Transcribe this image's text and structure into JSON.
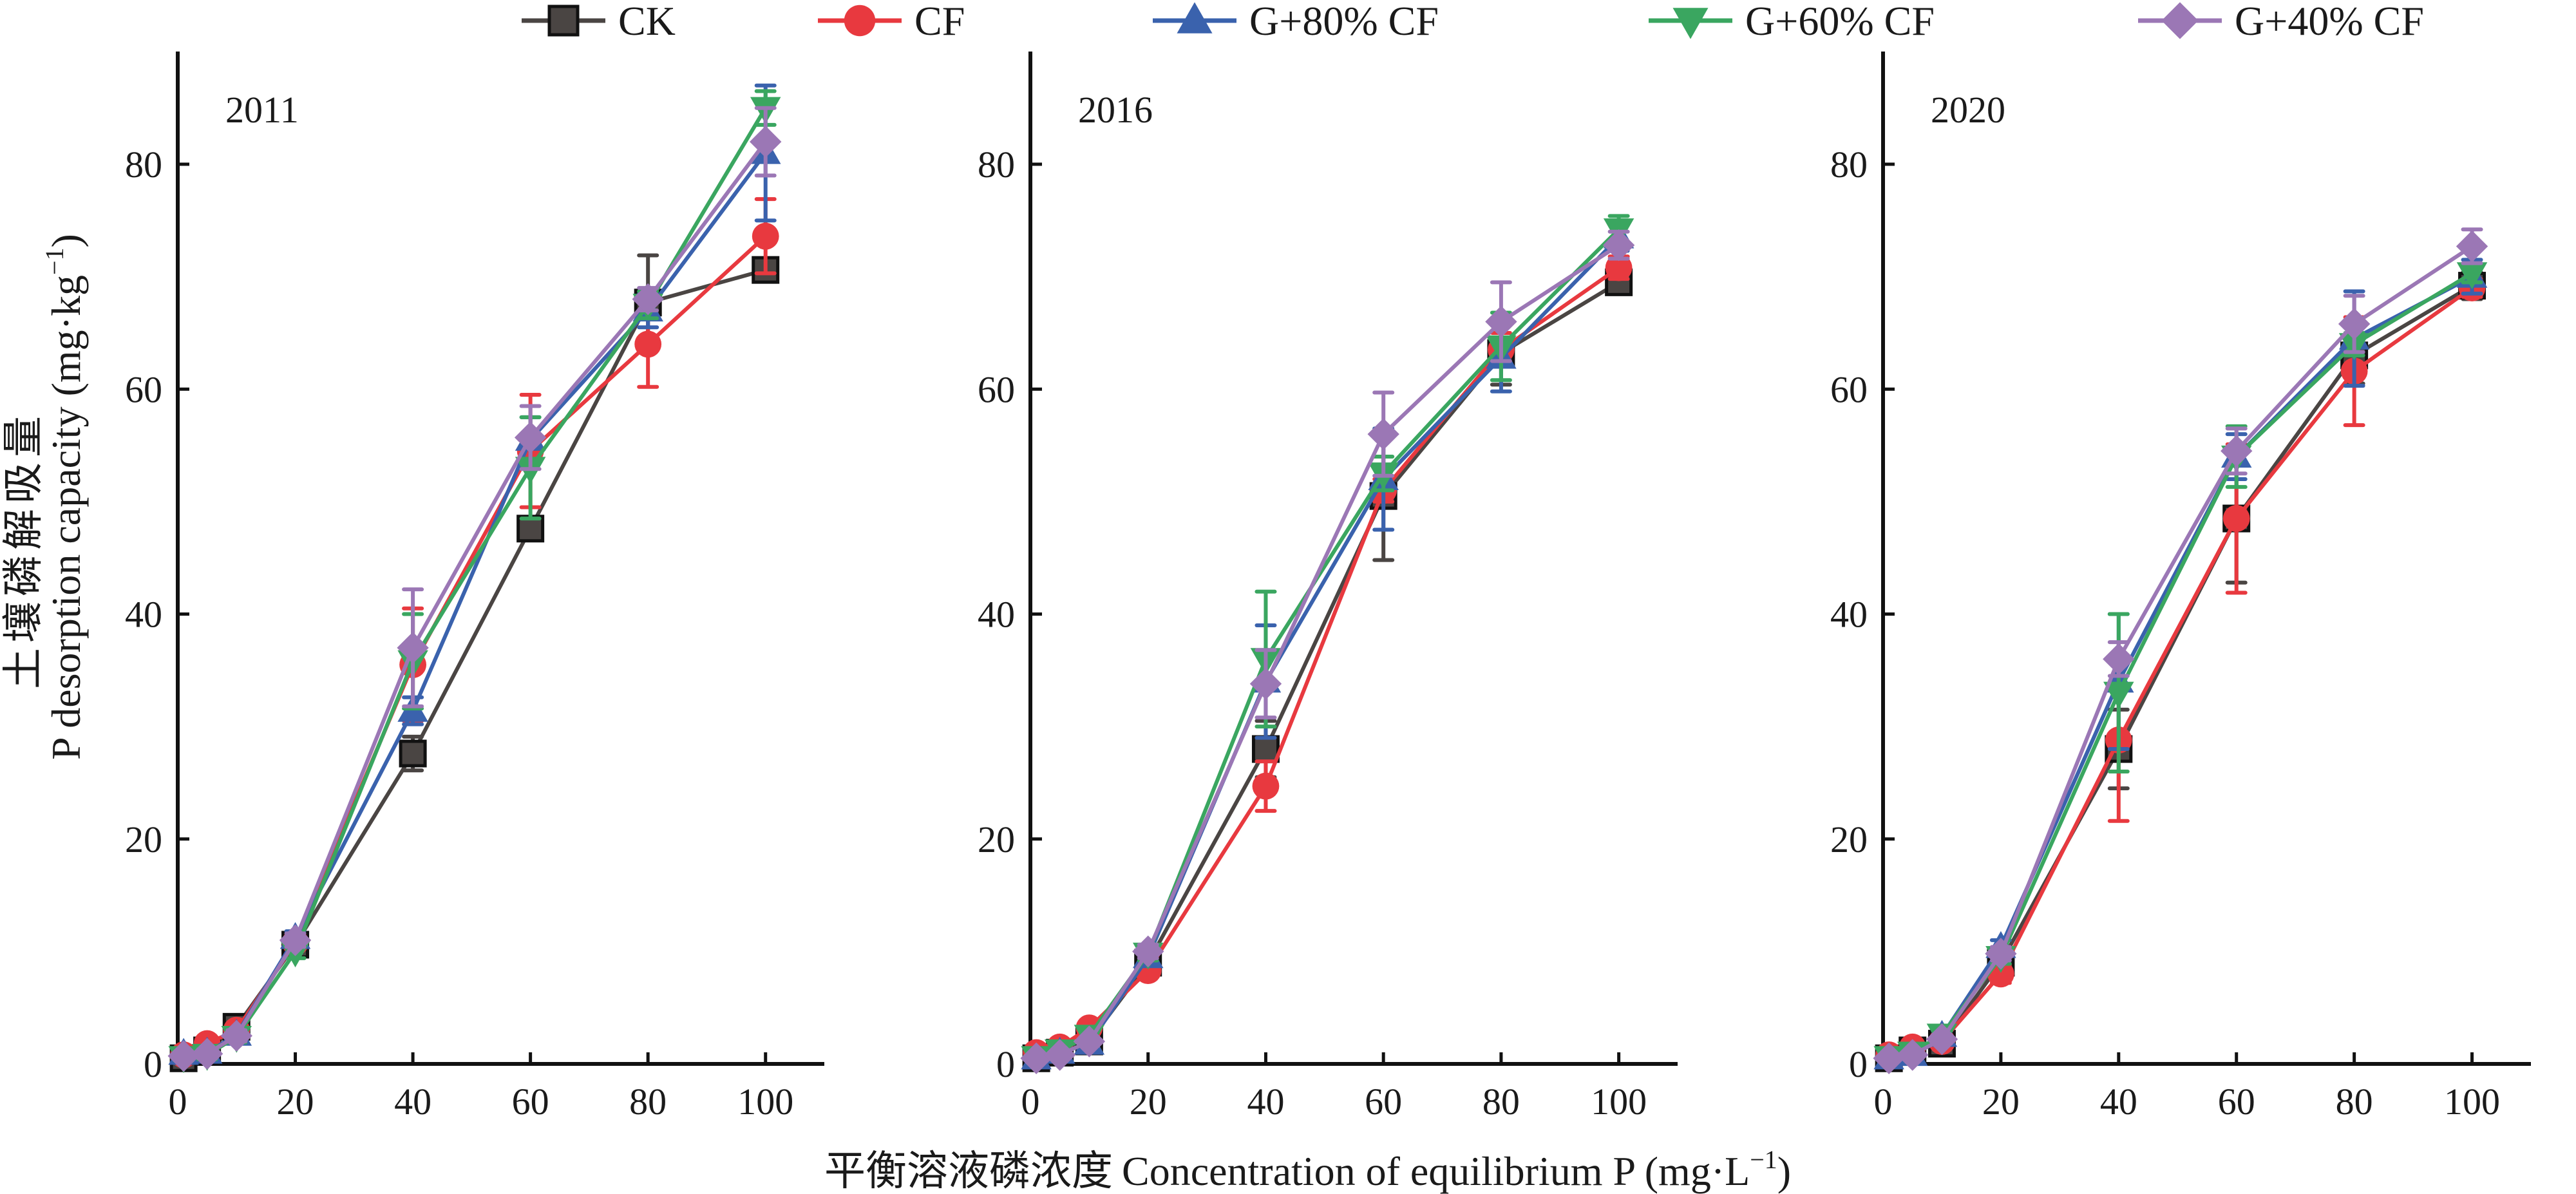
{
  "chart_data": {
    "type": "line",
    "shared": {
      "xlabel": "平衡溶液磷浓度 Concentration of equilibrium P (mg·L⁻¹)",
      "xlabel_cn": "平衡溶液磷浓度",
      "xlabel_en": "Concentration of equilibrium P (mg·L",
      "xlabel_unit_sup": "−1",
      "xlabel_close": ")",
      "ylabel_cn": "土壤磷解吸量",
      "ylabel_en": "P desorption capacity (mg·kg",
      "ylabel_unit_sup": "−1",
      "ylabel_close": ")",
      "xlim": [
        0,
        110
      ],
      "ylim": [
        0,
        90
      ],
      "xticks": [
        0,
        20,
        40,
        60,
        80,
        100
      ],
      "yticks": [
        0,
        20,
        40,
        60,
        80
      ],
      "grid": false,
      "legend_position": "top-center",
      "error_bars": true
    },
    "legend": [
      {
        "name": "CK",
        "color": "#4a4543",
        "marker": "square"
      },
      {
        "name": "CF",
        "color": "#e8393f",
        "marker": "circle"
      },
      {
        "name": "G+80% CF",
        "color": "#3a62ad",
        "marker": "triangle-up"
      },
      {
        "name": "G+60% CF",
        "color": "#3aa660",
        "marker": "triangle-down"
      },
      {
        "name": "G+40% CF",
        "color": "#9b77b5",
        "marker": "diamond"
      }
    ],
    "x": [
      1,
      5,
      10,
      20,
      40,
      60,
      80,
      100
    ],
    "panels": [
      {
        "title": "2011",
        "series": [
          {
            "name": "CK",
            "values": [
              0.5,
              1.2,
              3.3,
              10.6,
              27.6,
              47.6,
              67.7,
              70.6
            ],
            "errors": [
              0.3,
              0.4,
              0.5,
              0.6,
              1.5,
              1.0,
              4.2,
              0.8
            ]
          },
          {
            "name": "CF",
            "values": [
              0.8,
              1.8,
              3.0,
              10.8,
              35.5,
              54.5,
              64.0,
              73.6
            ],
            "errors": [
              0.3,
              0.4,
              0.5,
              0.6,
              5.0,
              5.0,
              3.8,
              3.3
            ]
          },
          {
            "name": "G+80% CF",
            "values": [
              0.9,
              1.0,
              2.6,
              11.2,
              31.4,
              55.5,
              67.0,
              81.0
            ],
            "errors": [
              0.3,
              0.4,
              0.5,
              0.6,
              1.2,
              2.0,
              1.5,
              6.0
            ]
          },
          {
            "name": "G+60% CF",
            "values": [
              0.6,
              0.8,
              2.4,
              10.0,
              35.8,
              53.0,
              67.5,
              85.0
            ],
            "errors": [
              0.3,
              0.4,
              0.5,
              0.6,
              4.2,
              4.5,
              1.2,
              1.5
            ]
          },
          {
            "name": "G+40% CF",
            "values": [
              0.7,
              0.9,
              2.5,
              11.0,
              37.0,
              55.7,
              68.0,
              82.0
            ],
            "errors": [
              0.3,
              0.4,
              0.5,
              0.6,
              5.2,
              2.8,
              1.0,
              3.0
            ]
          }
        ]
      },
      {
        "title": "2016",
        "series": [
          {
            "name": "CK",
            "values": [
              0.5,
              1.0,
              2.0,
              9.0,
              28.0,
              50.5,
              63.2,
              69.5
            ],
            "errors": [
              0.3,
              0.3,
              0.4,
              0.6,
              2.5,
              5.7,
              2.8,
              0.8
            ]
          },
          {
            "name": "CF",
            "values": [
              1.0,
              1.5,
              3.2,
              8.3,
              24.7,
              51.0,
              63.5,
              70.8
            ],
            "errors": [
              0.3,
              0.4,
              0.5,
              0.6,
              2.2,
              1.0,
              1.5,
              1.0
            ]
          },
          {
            "name": "G+80% CF",
            "values": [
              0.5,
              1.0,
              1.8,
              9.5,
              34.0,
              52.0,
              62.8,
              73.5
            ],
            "errors": [
              0.3,
              0.3,
              0.4,
              0.6,
              5.0,
              4.5,
              3.0,
              1.2
            ]
          },
          {
            "name": "G+60% CF",
            "values": [
              0.6,
              1.2,
              2.5,
              9.8,
              36.0,
              52.5,
              63.8,
              74.2
            ],
            "errors": [
              0.3,
              0.3,
              0.4,
              0.6,
              6.0,
              1.5,
              3.0,
              1.2
            ]
          },
          {
            "name": "G+40% CF",
            "values": [
              0.5,
              0.8,
              2.0,
              10.0,
              33.8,
              56.0,
              66.0,
              72.8
            ],
            "errors": [
              0.3,
              0.3,
              0.4,
              0.6,
              3.0,
              3.7,
              3.5,
              1.2
            ]
          }
        ]
      },
      {
        "title": "2020",
        "series": [
          {
            "name": "CK",
            "values": [
              0.5,
              1.2,
              1.8,
              9.0,
              28.0,
              48.5,
              63.0,
              69.2
            ],
            "errors": [
              0.3,
              0.3,
              0.4,
              0.5,
              3.5,
              5.7,
              2.5,
              1.2
            ]
          },
          {
            "name": "CF",
            "values": [
              0.8,
              1.5,
              2.0,
              8.0,
              28.8,
              48.5,
              61.6,
              69.0
            ],
            "errors": [
              0.3,
              0.3,
              0.4,
              0.8,
              7.2,
              6.6,
              4.8,
              0.8
            ]
          },
          {
            "name": "G+80% CF",
            "values": [
              0.5,
              0.8,
              2.5,
              10.4,
              34.0,
              54.0,
              64.5,
              70.0
            ],
            "errors": [
              0.3,
              0.3,
              0.4,
              0.6,
              6.0,
              2.0,
              4.2,
              1.5
            ]
          },
          {
            "name": "G+60% CF",
            "values": [
              0.6,
              1.0,
              2.6,
              9.5,
              33.0,
              54.0,
              64.0,
              70.3
            ],
            "errors": [
              0.3,
              0.3,
              0.4,
              0.6,
              7.0,
              2.7,
              1.0,
              0.8
            ]
          },
          {
            "name": "G+40% CF",
            "values": [
              0.5,
              0.8,
              2.2,
              9.8,
              36.0,
              54.5,
              65.8,
              72.7
            ],
            "errors": [
              0.3,
              0.3,
              0.4,
              0.6,
              1.5,
              2.0,
              2.5,
              1.5
            ]
          }
        ]
      }
    ]
  }
}
